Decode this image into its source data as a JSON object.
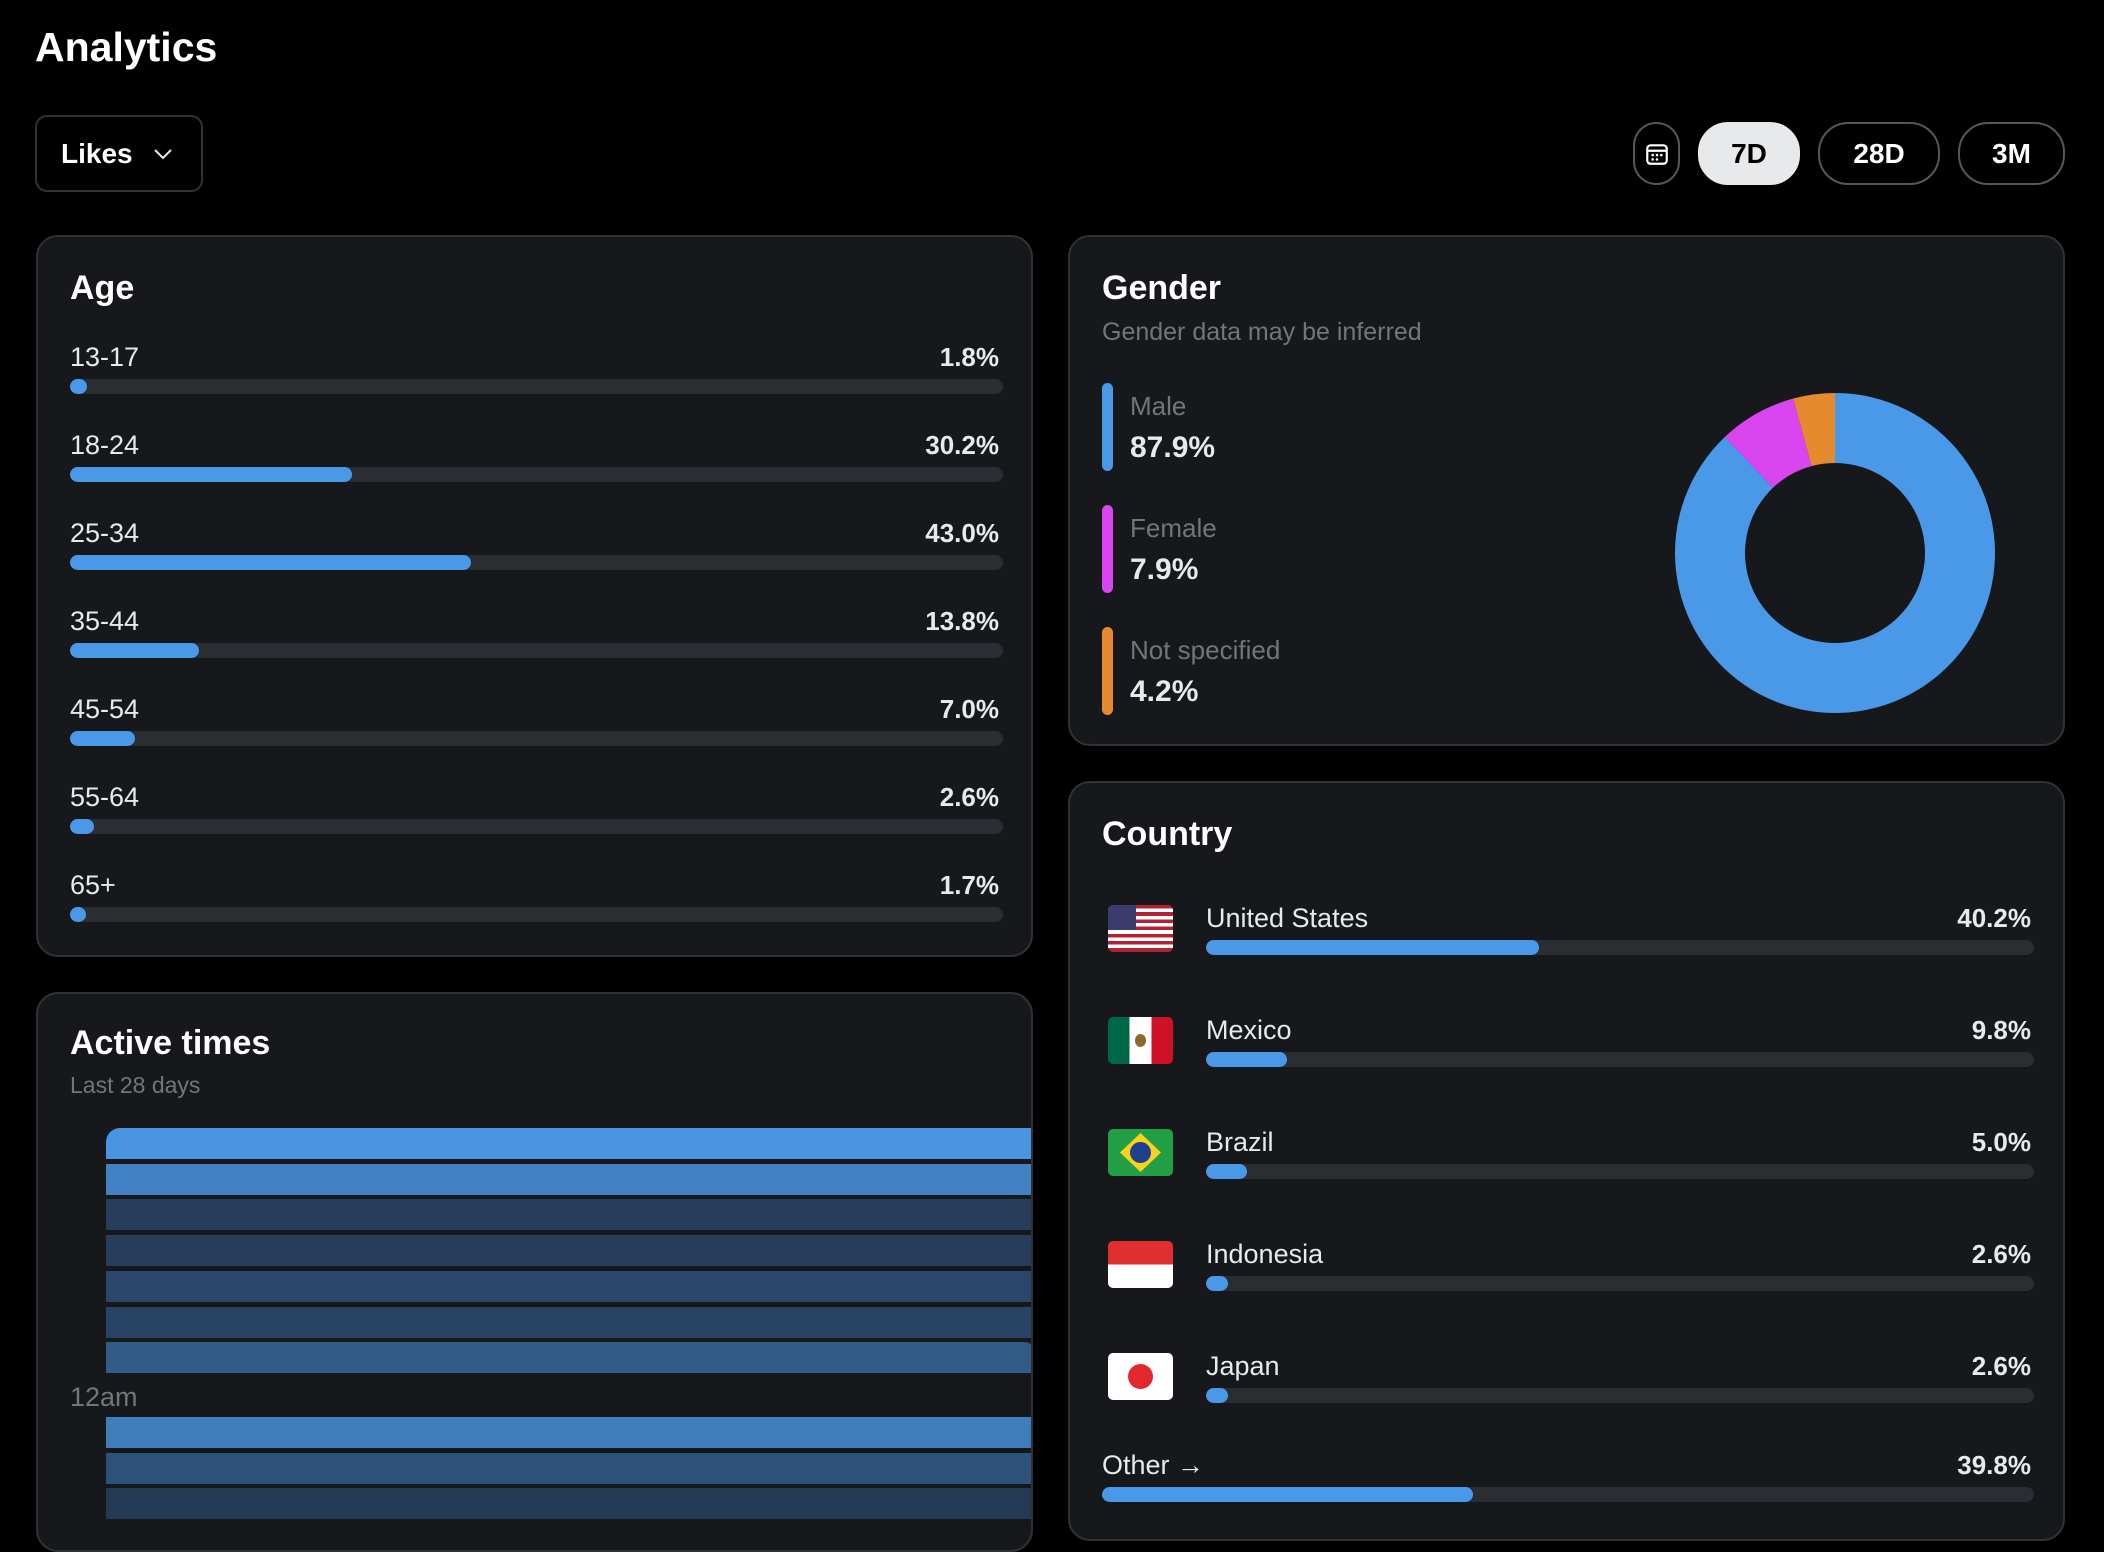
{
  "header": {
    "title": "Analytics",
    "metric_dropdown": "Likes",
    "ranges": [
      "7D",
      "28D",
      "3M"
    ],
    "selected_range": "7D"
  },
  "age": {
    "title": "Age",
    "rows": [
      {
        "label": "13-17",
        "pct": "1.8%",
        "value": 1.8
      },
      {
        "label": "18-24",
        "pct": "30.2%",
        "value": 30.2
      },
      {
        "label": "25-34",
        "pct": "43.0%",
        "value": 43.0
      },
      {
        "label": "35-44",
        "pct": "13.8%",
        "value": 13.8
      },
      {
        "label": "45-54",
        "pct": "7.0%",
        "value": 7.0
      },
      {
        "label": "55-64",
        "pct": "2.6%",
        "value": 2.6
      },
      {
        "label": "65+",
        "pct": "1.7%",
        "value": 1.7
      }
    ]
  },
  "gender": {
    "title": "Gender",
    "subtitle": "Gender data may be inferred",
    "items": [
      {
        "label": "Male",
        "pct": "87.9%",
        "value": 87.9,
        "color": "#4a99e9"
      },
      {
        "label": "Female",
        "pct": "7.9%",
        "value": 7.9,
        "color": "#d946ef"
      },
      {
        "label": "Not specified",
        "pct": "4.2%",
        "value": 4.2,
        "color": "#e58a2e"
      }
    ]
  },
  "country": {
    "title": "Country",
    "rows": [
      {
        "label": "United States",
        "pct": "40.2%",
        "value": 40.2,
        "flag": "us"
      },
      {
        "label": "Mexico",
        "pct": "9.8%",
        "value": 9.8,
        "flag": "mx"
      },
      {
        "label": "Brazil",
        "pct": "5.0%",
        "value": 5.0,
        "flag": "br"
      },
      {
        "label": "Indonesia",
        "pct": "2.6%",
        "value": 2.6,
        "flag": "id"
      },
      {
        "label": "Japan",
        "pct": "2.6%",
        "value": 2.6,
        "flag": "jp"
      }
    ],
    "other": {
      "label": "Other →",
      "pct": "39.8%",
      "value": 39.8
    }
  },
  "active_times": {
    "title": "Active times",
    "subtitle": "Last 28 days",
    "hour_label": "12am",
    "intensity_before": [
      1.0,
      0.8,
      0.1,
      0.1,
      0.2,
      0.15,
      0.4
    ],
    "intensity_after": [
      0.75,
      0.3,
      0.05
    ]
  },
  "colors": {
    "accent": "#4a99e9",
    "card": "#16181c",
    "track": "#2a2e33"
  }
}
